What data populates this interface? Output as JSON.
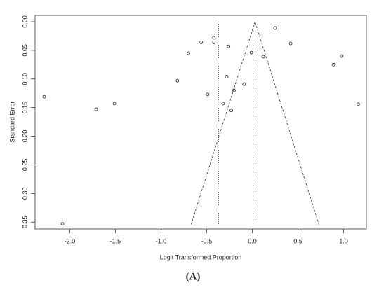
{
  "chart_data": {
    "type": "scatter",
    "x_label": "Logit Transformed Proportion",
    "y_label": "Standard Error",
    "caption": "(A)",
    "color": "#333333",
    "y_inverted": true,
    "xlim": [
      -2.38,
      1.25
    ],
    "ylim": [
      -0.011,
      0.362
    ],
    "xticks": [
      {
        "value": -2,
        "label": "-2.0"
      },
      -1.5,
      {
        "value": -1,
        "label": "-1.0"
      },
      -0.5,
      {
        "value": 0,
        "label": "0.0"
      },
      0.5,
      {
        "value": 1,
        "label": "1.0"
      }
    ],
    "yticks": [
      {
        "value": 0,
        "label": "0.00"
      },
      0.05,
      {
        "value": 0.1,
        "label": "0.10"
      },
      0.15,
      {
        "value": 0.2,
        "label": "0.20"
      },
      0.25,
      {
        "value": 0.3,
        "label": "0.30"
      },
      0.35
    ],
    "x": [
      0.25,
      -0.42,
      -0.42,
      -0.56,
      -0.26,
      0.42,
      -0.7,
      -0.01,
      0.12,
      0.98,
      0.89,
      -0.82,
      -0.28,
      -0.09,
      -0.2,
      -0.49,
      -2.28,
      -0.32,
      -1.51,
      1.16,
      -1.71,
      -0.23,
      -2.08
    ],
    "values": [
      0.011,
      0.028,
      0.036,
      0.036,
      0.043,
      0.038,
      0.055,
      0.054,
      0.061,
      0.06,
      0.075,
      0.103,
      0.096,
      0.109,
      0.12,
      0.127,
      0.131,
      0.143,
      0.143,
      0.144,
      0.153,
      0.155,
      0.353
    ],
    "vlines": [
      {
        "x": -0.37,
        "y": [
          0,
          0.354
        ],
        "style": "dotted"
      },
      {
        "x": 0.03,
        "y": [
          0,
          0.354
        ],
        "style": "dashed"
      }
    ],
    "funnel": {
      "x": [
        -0.67,
        0.03,
        0.73
      ],
      "y": [
        0.354,
        0,
        0.354
      ]
    }
  }
}
